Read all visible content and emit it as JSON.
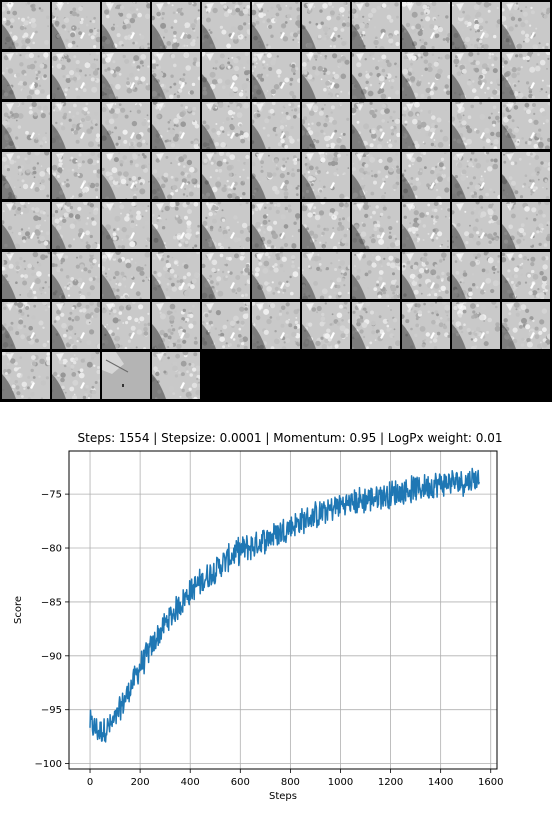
{
  "sample_grid": {
    "columns": 11,
    "tile_count": 81,
    "odd_tile_index": 79,
    "tile_style": "grayscale noisy texture",
    "background_color": "#000000"
  },
  "chart_data": {
    "type": "line",
    "title": "Steps: 1554 | Stepsize: 0.0001 | Momentum: 0.95 | LogPx weight: 0.01",
    "xlabel": "Steps",
    "ylabel": "Score",
    "xlim": [
      -84,
      1625
    ],
    "ylim": [
      -100.5,
      -71.0
    ],
    "xticks": [
      0,
      200,
      400,
      600,
      800,
      1000,
      1200,
      1400,
      1600
    ],
    "yticks": [
      -100,
      -95,
      -90,
      -85,
      -80,
      -75
    ],
    "grid": true,
    "line_color": "#1f77b4",
    "series": [
      {
        "x": [
          0,
          20,
          40,
          60,
          80,
          100,
          120,
          160,
          200,
          250,
          300,
          350,
          400,
          450,
          500,
          550,
          600,
          650,
          700,
          800,
          900,
          1000,
          1100,
          1200,
          1300,
          1400,
          1500,
          1554
        ],
        "values": [
          -96.2,
          -96.8,
          -97.0,
          -96.8,
          -96.5,
          -96.0,
          -95.0,
          -93.0,
          -91.0,
          -89.0,
          -87.0,
          -85.5,
          -84.0,
          -83.0,
          -82.0,
          -81.0,
          -80.2,
          -79.8,
          -79.2,
          -78.0,
          -77.0,
          -76.0,
          -75.5,
          -75.0,
          -74.5,
          -74.0,
          -73.8,
          -73.5
        ]
      }
    ]
  }
}
